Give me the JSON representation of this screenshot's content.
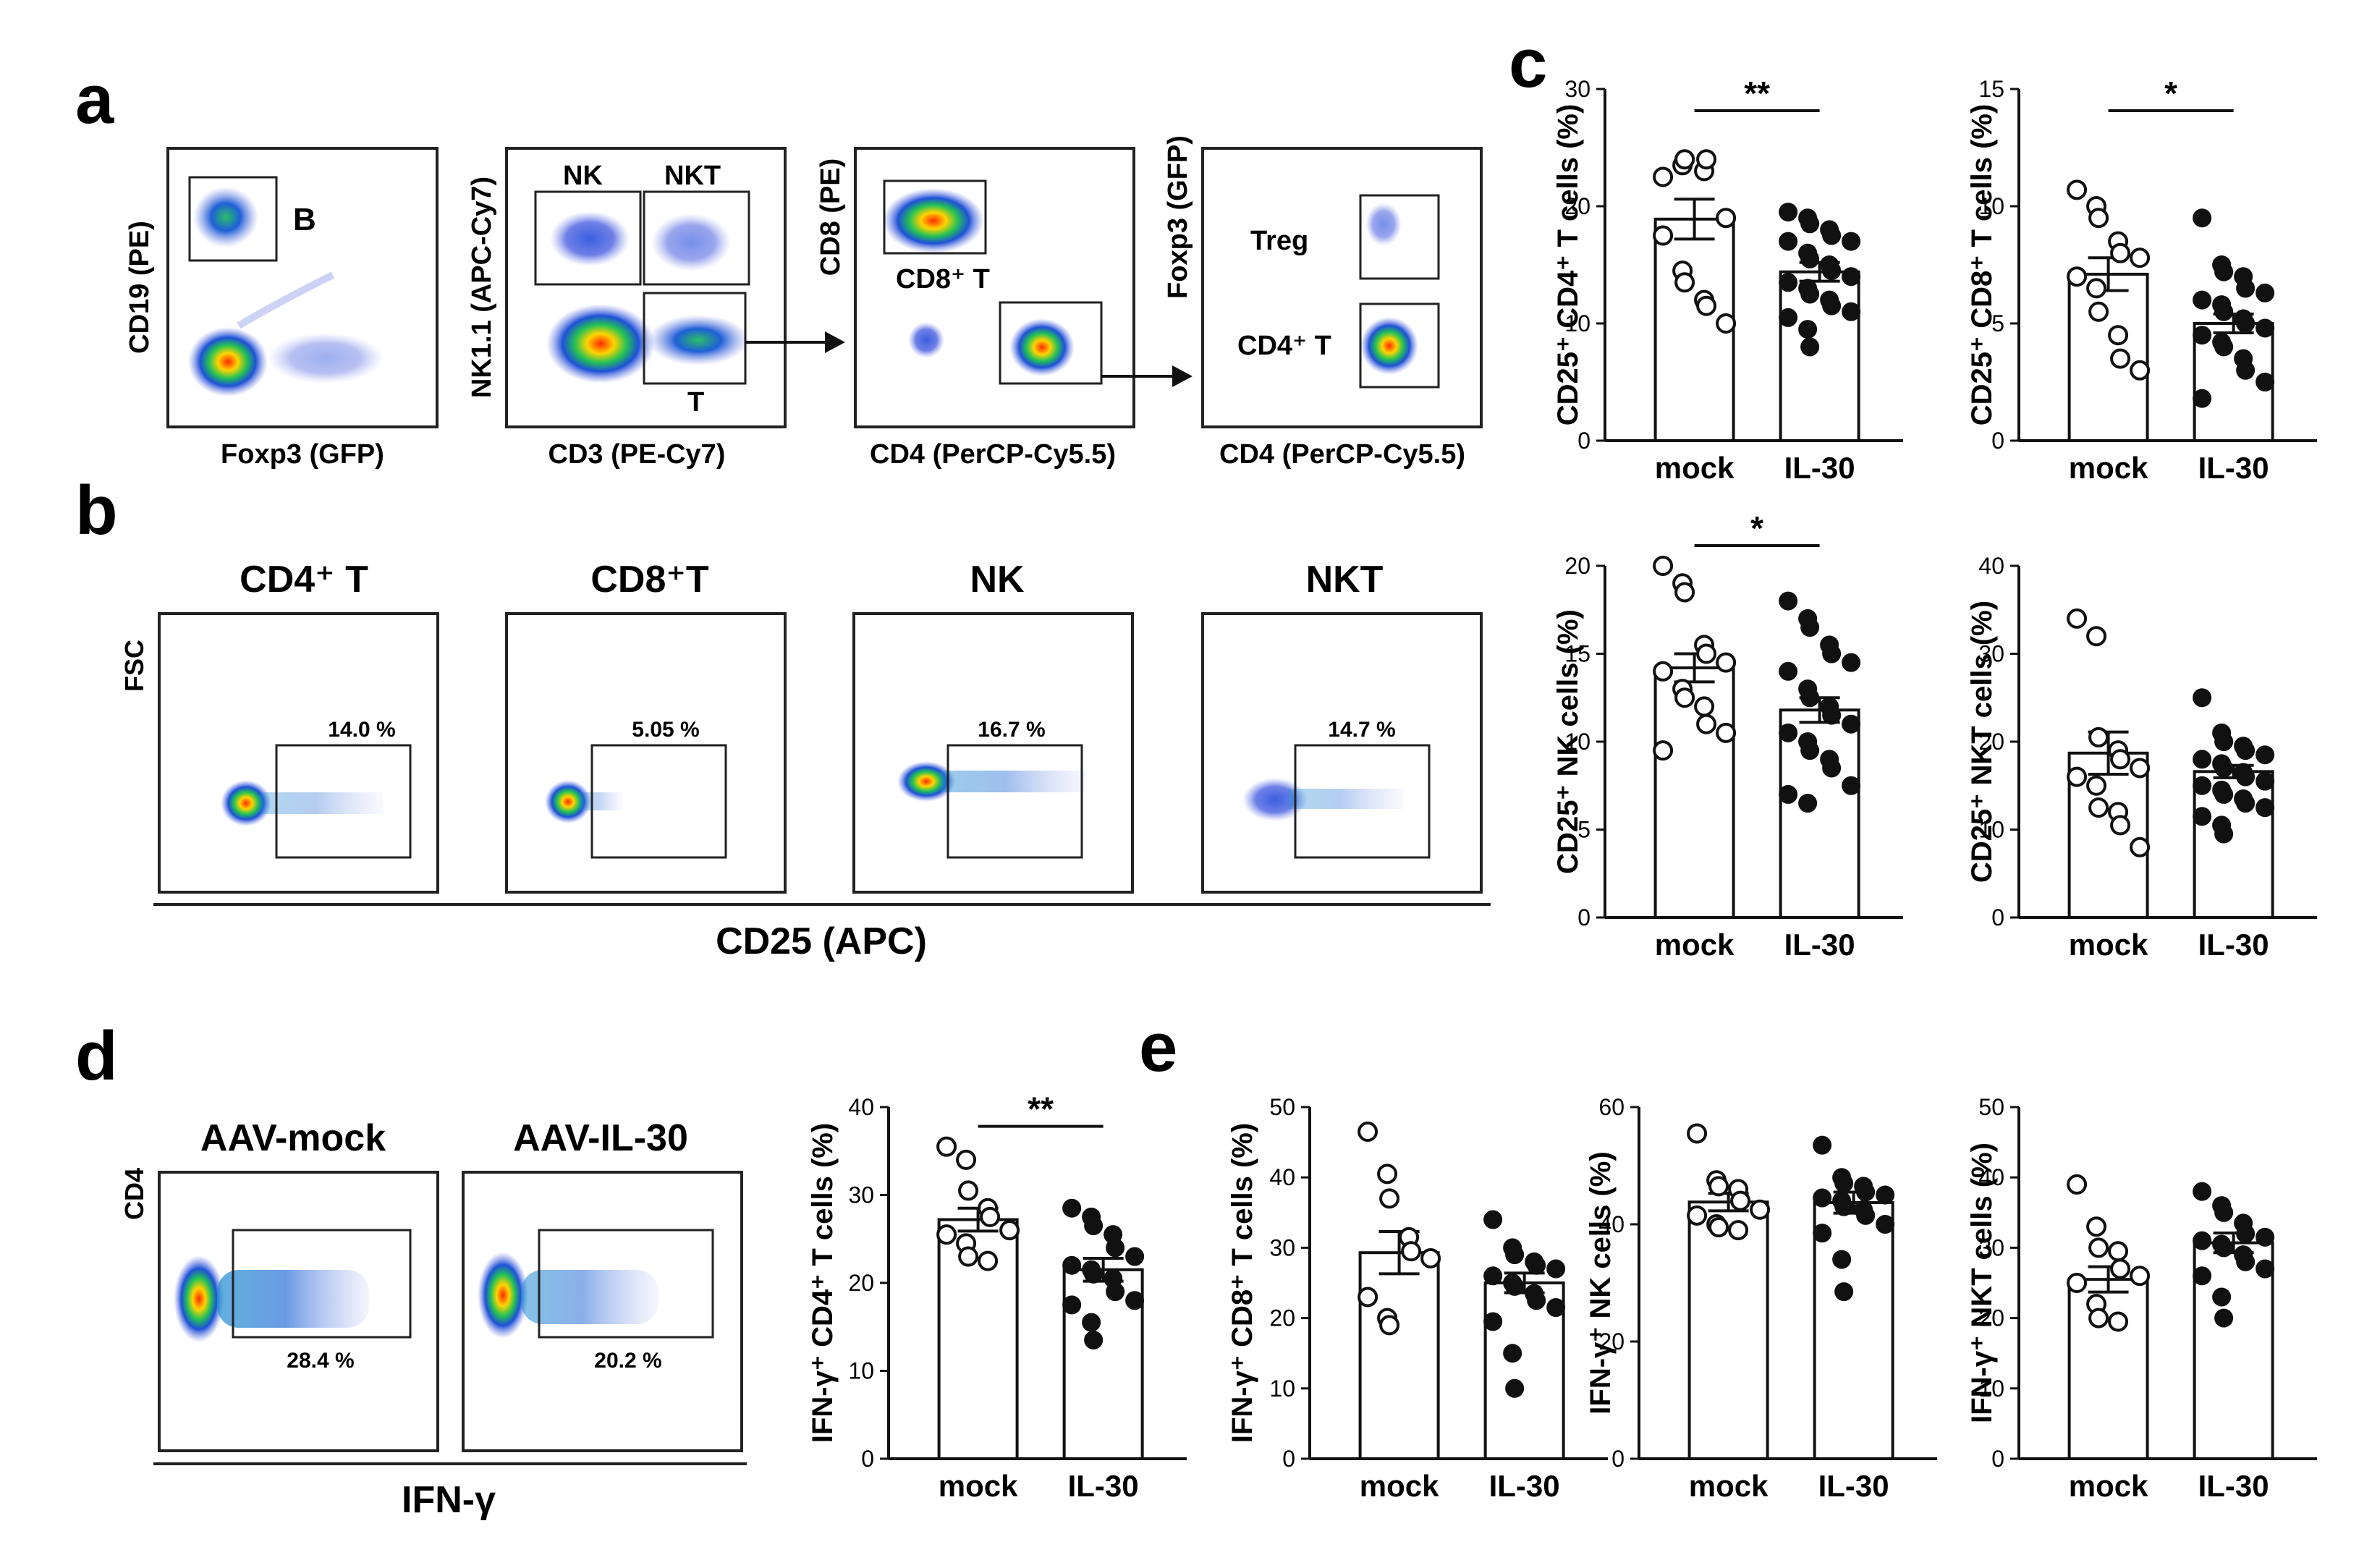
{
  "figure": {
    "panel_labels": [
      "a",
      "b",
      "c",
      "d",
      "e"
    ],
    "panel_a": {
      "plots": [
        {
          "xlabel": "Foxp3 (GFP)",
          "ylabel": "CD19 (PE)",
          "gates": [
            "B"
          ]
        },
        {
          "xlabel": "CD3 (PE-Cy7)",
          "ylabel": "NK1.1 (APC-Cy7)",
          "gates": [
            "NK",
            "NKT",
            "T"
          ]
        },
        {
          "xlabel": "CD4 (PerCP-Cy5.5)",
          "ylabel": "CD8 (PE)",
          "gates": [
            "CD8⁺ T"
          ]
        },
        {
          "xlabel": "CD4 (PerCP-Cy5.5)",
          "ylabel": "Foxp3 (GFP)",
          "gates": [
            "Treg",
            "CD4⁺ T"
          ]
        }
      ]
    },
    "panel_b": {
      "ylabel": "FSC",
      "xlabel": "CD25 (APC)",
      "plots": [
        {
          "title": "CD4⁺ T",
          "percent": "14.0 %"
        },
        {
          "title": "CD8⁺T",
          "percent": "5.05 %"
        },
        {
          "title": "NK",
          "percent": "16.7 %"
        },
        {
          "title": "NKT",
          "percent": "14.7 %"
        }
      ]
    },
    "panel_d_flow": {
      "ylabel": "CD4",
      "xlabel": "IFN-γ",
      "plots": [
        {
          "title": "AAV-mock",
          "percent": "28.4 %"
        },
        {
          "title": "AAV-IL-30",
          "percent": "20.2 %"
        }
      ]
    }
  },
  "chart_data": [
    {
      "id": "c1",
      "type": "bar",
      "categories": [
        "mock",
        "IL-30"
      ],
      "ylabel": "CD25⁺ CD4⁺ T cells (%)",
      "ylim": [
        0,
        30
      ],
      "yticks": [
        0,
        10,
        20,
        30
      ],
      "significance": "**",
      "means": [
        18.9,
        14.4
      ],
      "sem": [
        1.7,
        0.8
      ],
      "points": [
        [
          22.5,
          23.5,
          24.0,
          23.0,
          24.0,
          19.0,
          17.5,
          14.5,
          13.5,
          12.0,
          11.5,
          10.0
        ],
        [
          19.5,
          19.0,
          18.5,
          18.0,
          17.5,
          17.0,
          17.0,
          16.0,
          15.5,
          15.0,
          14.5,
          14.0,
          13.5,
          13.0,
          12.5,
          12.0,
          11.5,
          11.0,
          10.5,
          9.5,
          8.0
        ]
      ]
    },
    {
      "id": "c2",
      "type": "bar",
      "categories": [
        "mock",
        "IL-30"
      ],
      "ylabel": "CD25⁺ CD8⁺ T cells (%)",
      "ylim": [
        0,
        15
      ],
      "yticks": [
        0,
        5,
        10,
        15
      ],
      "significance": "*",
      "means": [
        7.1,
        5.0
      ],
      "sem": [
        0.7,
        0.4
      ],
      "points": [
        [
          10.7,
          10.0,
          9.5,
          8.5,
          8.0,
          7.8,
          7.0,
          6.5,
          5.5,
          4.5,
          3.5,
          3.0
        ],
        [
          9.5,
          7.5,
          7.2,
          7.0,
          6.5,
          6.3,
          6.0,
          5.8,
          5.5,
          5.2,
          5.0,
          4.8,
          4.5,
          4.2,
          4.0,
          3.5,
          3.0,
          2.5,
          1.8
        ]
      ]
    },
    {
      "id": "c3",
      "type": "bar",
      "categories": [
        "mock",
        "IL-30"
      ],
      "ylabel": "CD25⁺ NK cells (%)",
      "ylim": [
        0,
        20
      ],
      "yticks": [
        0,
        5,
        10,
        15,
        20
      ],
      "significance": "*",
      "means": [
        14.2,
        11.8
      ],
      "sem": [
        0.8,
        0.7
      ],
      "points": [
        [
          20.0,
          19.0,
          18.5,
          15.5,
          15.0,
          14.5,
          14.0,
          13.0,
          12.5,
          12.0,
          11.0,
          10.5,
          9.5
        ],
        [
          18.0,
          17.0,
          16.5,
          15.5,
          15.0,
          14.5,
          14.0,
          13.0,
          12.5,
          12.0,
          11.5,
          11.0,
          10.5,
          10.0,
          9.5,
          9.0,
          8.5,
          7.5,
          7.0,
          6.5
        ]
      ]
    },
    {
      "id": "c4",
      "type": "bar",
      "categories": [
        "mock",
        "IL-30"
      ],
      "ylabel": "CD25⁺ NKT cells (%)",
      "ylim": [
        0,
        40
      ],
      "yticks": [
        0,
        10,
        20,
        30,
        40
      ],
      "significance": "",
      "means": [
        18.7,
        16.6
      ],
      "sem": [
        2.4,
        0.7
      ],
      "points": [
        [
          34.0,
          32.0,
          20.5,
          19.0,
          18.0,
          17.0,
          16.0,
          15.0,
          12.5,
          12.0,
          10.5,
          8.0
        ],
        [
          25.0,
          21.0,
          20.0,
          19.5,
          19.0,
          18.5,
          18.0,
          17.5,
          17.0,
          16.5,
          16.0,
          15.5,
          15.0,
          14.5,
          14.0,
          13.5,
          13.0,
          12.5,
          11.5,
          10.5,
          9.5
        ]
      ]
    },
    {
      "id": "d",
      "type": "bar",
      "categories": [
        "mock",
        "IL-30"
      ],
      "ylabel": "IFN-γ⁺ CD4⁺ T cells (%)",
      "ylim": [
        0,
        40
      ],
      "yticks": [
        0,
        10,
        20,
        30,
        40
      ],
      "significance": "**",
      "means": [
        27.2,
        21.5
      ],
      "sem": [
        1.3,
        1.3
      ],
      "points": [
        [
          35.5,
          34.0,
          30.5,
          28.5,
          27.5,
          26.0,
          25.5,
          24.5,
          23.0,
          22.5
        ],
        [
          28.5,
          27.5,
          26.5,
          25.5,
          24.0,
          23.0,
          22.0,
          21.5,
          21.0,
          20.5,
          19.0,
          18.0,
          17.5,
          15.5,
          13.5
        ]
      ]
    },
    {
      "id": "e1",
      "type": "bar",
      "categories": [
        "mock",
        "IL-30"
      ],
      "ylabel": "IFN-γ⁺ CD8⁺ T cells (%)",
      "ylim": [
        0,
        50
      ],
      "yticks": [
        0,
        10,
        20,
        30,
        40,
        50
      ],
      "significance": "",
      "means": [
        29.3,
        25.0
      ],
      "sem": [
        3.0,
        1.4
      ],
      "points": [
        [
          46.5,
          40.5,
          37.0,
          31.5,
          29.5,
          28.5,
          23.0,
          20.0,
          19.0
        ],
        [
          34.0,
          30.0,
          29.0,
          28.0,
          27.5,
          27.0,
          26.0,
          25.0,
          24.5,
          23.5,
          22.5,
          21.5,
          19.5,
          15.0,
          10.0
        ]
      ]
    },
    {
      "id": "e2",
      "type": "bar",
      "categories": [
        "mock",
        "IL-30"
      ],
      "ylabel": "IFN-γ⁺ NK cells (%)",
      "ylim": [
        0,
        60
      ],
      "yticks": [
        0,
        20,
        40,
        60
      ],
      "significance": "",
      "means": [
        43.8,
        43.7
      ],
      "sem": [
        1.5,
        1.8
      ],
      "points": [
        [
          55.5,
          47.5,
          46.5,
          46.0,
          44.0,
          42.5,
          41.5,
          40.0,
          39.5,
          39.0
        ],
        [
          53.5,
          48.0,
          47.0,
          46.5,
          45.5,
          45.0,
          44.5,
          44.0,
          43.0,
          42.5,
          41.5,
          40.0,
          38.5,
          34.0,
          28.5
        ]
      ]
    },
    {
      "id": "e3",
      "type": "bar",
      "categories": [
        "mock",
        "IL-30"
      ],
      "ylabel": "IFN-γ⁺ NKT cells (%)",
      "ylim": [
        0,
        50
      ],
      "yticks": [
        0,
        10,
        20,
        30,
        40,
        50
      ],
      "significance": "",
      "means": [
        25.5,
        30.7
      ],
      "sem": [
        1.8,
        1.4
      ],
      "points": [
        [
          39.0,
          33.0,
          30.0,
          29.5,
          27.0,
          26.0,
          25.0,
          22.0,
          20.0,
          19.5
        ],
        [
          38.0,
          36.0,
          35.0,
          33.5,
          32.0,
          31.5,
          31.0,
          30.5,
          30.0,
          29.0,
          28.0,
          27.0,
          26.0,
          23.0,
          20.0
        ]
      ]
    }
  ]
}
